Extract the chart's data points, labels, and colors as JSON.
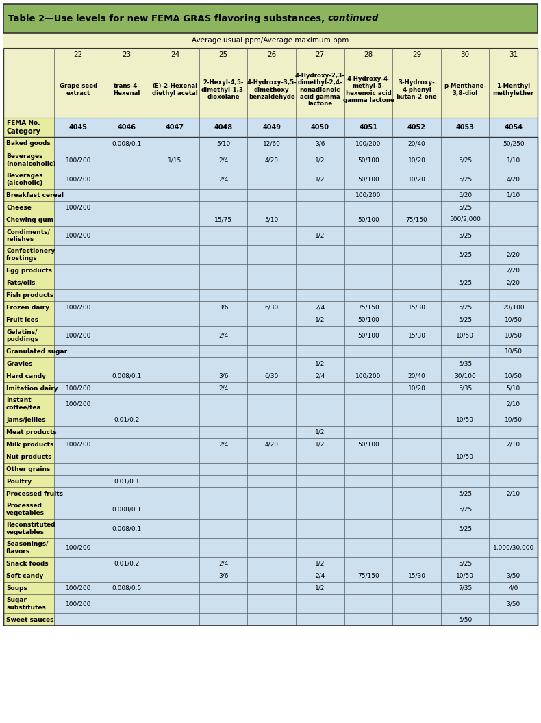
{
  "title_normal": "Table 2—Use levels for new FEMA GRAS flavoring substances, ",
  "title_italic": "continued",
  "subtitle": "Average usual ppm/Average maximum ppm",
  "col_numbers": [
    "22",
    "23",
    "24",
    "25",
    "26",
    "27",
    "28",
    "29",
    "30",
    "31"
  ],
  "col_names": [
    "Grape seed\nextract",
    "trans-4-\nHexenal",
    "(E)-2-Hexenal\ndiethyl acetal",
    "2-Hexyl-4,5-\ndimethyl-1,3-\ndioxolane",
    "4-Hydroxy-3,5-\ndimethoxy\nbenzaldehyde",
    "4-Hydroxy-2,3-\ndimethyl-2,4-\nnonadienoic\nacid gamma\nlactone",
    "4-Hydroxy-4-\nmethyl-5-\nhexenoic acid\ngamma lactone",
    "3-Hydroxy-\n4-phenyl\nbutan-2-one",
    "p-Menthane-\n3,8-diol",
    "1-Menthyl\nmethylether"
  ],
  "fema_numbers": [
    "4045",
    "4046",
    "4047",
    "4048",
    "4049",
    "4050",
    "4051",
    "4052",
    "4053",
    "4054"
  ],
  "categories": [
    "Baked goods",
    "Beverages\n(nonalcoholic)",
    "Beverages\n(alcoholic)",
    "Breakfast cereal",
    "Cheese",
    "Chewing gum",
    "Condiments/\nrelishes",
    "Confectionery\nfrostings",
    "Egg products",
    "Fats/oils",
    "Fish products",
    "Frozen dairy",
    "Fruit ices",
    "Gelatins/\npuddings",
    "Granulated sugar",
    "Gravies",
    "Hard candy",
    "Imitation dairy",
    "Instant\ncoffee/tea",
    "Jams/jellies",
    "Meat products",
    "Milk products",
    "Nut products",
    "Other grains",
    "Poultry",
    "Processed fruits",
    "Processed\nvegetables",
    "Reconstituted\nvegetables",
    "Seasonings/\nflavors",
    "Snack foods",
    "Soft candy",
    "Soups",
    "Sugar\nsubstitutes",
    "Sweet sauces"
  ],
  "data": [
    [
      "",
      "0.008/0.1",
      "",
      "5/10",
      "12/60",
      "3/6",
      "100/200",
      "20/40",
      "",
      "50/250"
    ],
    [
      "100/200",
      "",
      "1/15",
      "2/4",
      "4/20",
      "1/2",
      "50/100",
      "10/20",
      "5/25",
      "1/10"
    ],
    [
      "100/200",
      "",
      "",
      "2/4",
      "",
      "1/2",
      "50/100",
      "10/20",
      "5/25",
      "4/20"
    ],
    [
      "",
      "",
      "",
      "",
      "",
      "",
      "100/200",
      "",
      "5/20",
      "1/10"
    ],
    [
      "100/200",
      "",
      "",
      "",
      "",
      "",
      "",
      "",
      "5/25",
      ""
    ],
    [
      "",
      "",
      "",
      "15/75",
      "5/10",
      "",
      "50/100",
      "75/150",
      "500/2,000",
      ""
    ],
    [
      "100/200",
      "",
      "",
      "",
      "",
      "1/2",
      "",
      "",
      "5/25",
      ""
    ],
    [
      "",
      "",
      "",
      "",
      "",
      "",
      "",
      "",
      "5/25",
      "2/20"
    ],
    [
      "",
      "",
      "",
      "",
      "",
      "",
      "",
      "",
      "",
      "2/20"
    ],
    [
      "",
      "",
      "",
      "",
      "",
      "",
      "",
      "",
      "5/25",
      "2/20"
    ],
    [
      "",
      "",
      "",
      "",
      "",
      "",
      "",
      "",
      "",
      ""
    ],
    [
      "100/200",
      "",
      "",
      "3/6",
      "6/30",
      "2/4",
      "75/150",
      "15/30",
      "5/25",
      "20/100"
    ],
    [
      "",
      "",
      "",
      "",
      "",
      "1/2",
      "50/100",
      "",
      "5/25",
      "10/50"
    ],
    [
      "100/200",
      "",
      "",
      "2/4",
      "",
      "",
      "50/100",
      "15/30",
      "10/50",
      "10/50"
    ],
    [
      "",
      "",
      "",
      "",
      "",
      "",
      "",
      "",
      "",
      "10/50"
    ],
    [
      "",
      "",
      "",
      "",
      "",
      "1/2",
      "",
      "",
      "5/35",
      ""
    ],
    [
      "",
      "0.008/0.1",
      "",
      "3/6",
      "6/30",
      "2/4",
      "100/200",
      "20/40",
      "30/100",
      "10/50"
    ],
    [
      "100/200",
      "",
      "",
      "2/4",
      "",
      "",
      "",
      "10/20",
      "5/35",
      "5/10"
    ],
    [
      "100/200",
      "",
      "",
      "",
      "",
      "",
      "",
      "",
      "",
      "2/10"
    ],
    [
      "",
      "0.01/0.2",
      "",
      "",
      "",
      "",
      "",
      "",
      "10/50",
      "10/50"
    ],
    [
      "",
      "",
      "",
      "",
      "",
      "1/2",
      "",
      "",
      "",
      ""
    ],
    [
      "100/200",
      "",
      "",
      "2/4",
      "4/20",
      "1/2",
      "50/100",
      "",
      "",
      "2/10"
    ],
    [
      "",
      "",
      "",
      "",
      "",
      "",
      "",
      "",
      "10/50",
      ""
    ],
    [
      "",
      "",
      "",
      "",
      "",
      "",
      "",
      "",
      "",
      ""
    ],
    [
      "",
      "0.01/0.1",
      "",
      "",
      "",
      "",
      "",
      "",
      "",
      ""
    ],
    [
      "",
      "",
      "",
      "",
      "",
      "",
      "",
      "",
      "5/25",
      "2/10"
    ],
    [
      "",
      "0.008/0.1",
      "",
      "",
      "",
      "",
      "",
      "",
      "5/25",
      ""
    ],
    [
      "",
      "0.008/0.1",
      "",
      "",
      "",
      "",
      "",
      "",
      "5/25",
      ""
    ],
    [
      "100/200",
      "",
      "",
      "",
      "",
      "",
      "",
      "",
      "",
      "1,000/30,000"
    ],
    [
      "",
      "0.01/0.2",
      "",
      "2/4",
      "",
      "1/2",
      "",
      "",
      "5/25",
      ""
    ],
    [
      "",
      "",
      "",
      "3/6",
      "",
      "2/4",
      "75/150",
      "15/30",
      "10/50",
      "3/50"
    ],
    [
      "100/200",
      "0.008/0.5",
      "",
      "",
      "",
      "1/2",
      "",
      "",
      "7/35",
      "4/0"
    ],
    [
      "100/200",
      "",
      "",
      "",
      "",
      "",
      "",
      "",
      "",
      "3/50"
    ],
    [
      "",
      "",
      "",
      "",
      "",
      "",
      "",
      "",
      "5/50",
      ""
    ]
  ],
  "title_bg": "#8db560",
  "subheader_bg": "#f0f0c8",
  "cat_col_bg": "#e8eca0",
  "data_row_bg": "#cce0f0",
  "fema_row_bg": "#cce0f0",
  "border_color": "#555555",
  "thick_border": "#333333"
}
